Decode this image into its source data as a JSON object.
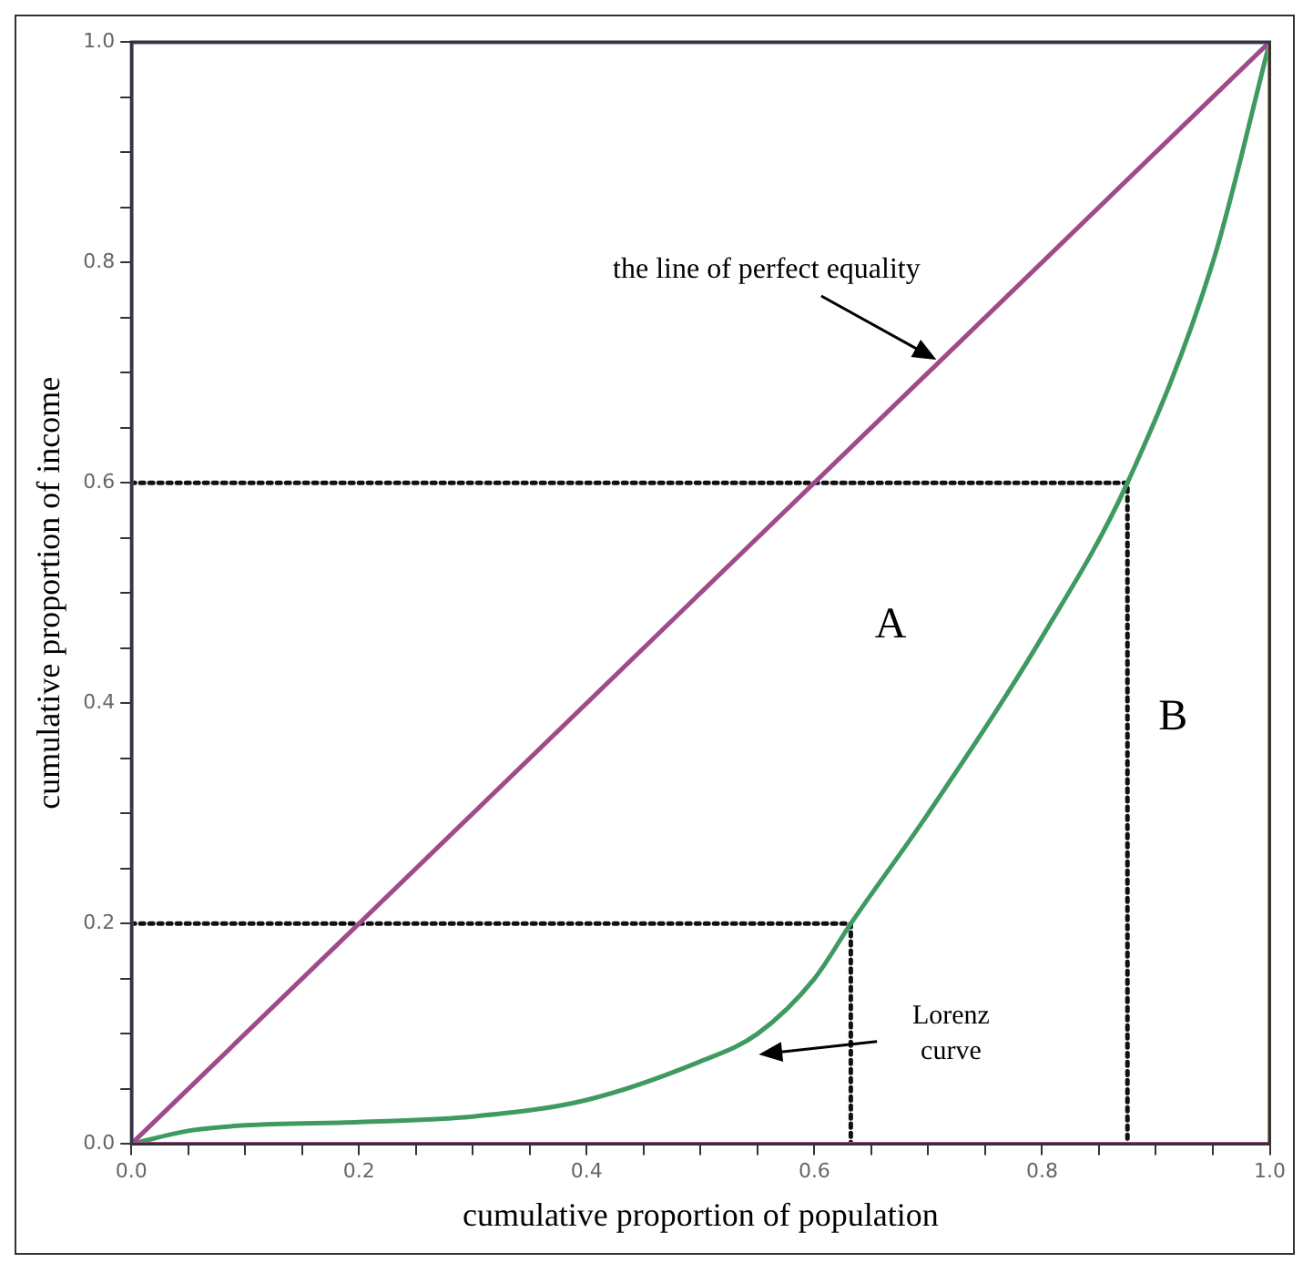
{
  "chart_data": {
    "type": "line",
    "xlabel": "cumulative proportion of population",
    "ylabel": "cumulative proportion of income",
    "xlim": [
      0,
      1
    ],
    "ylim": [
      0,
      1
    ],
    "xticks": [
      {
        "value": 0,
        "label": "0.0"
      },
      {
        "value": 0.05,
        "label": null
      },
      {
        "value": 0.1,
        "label": null
      },
      {
        "value": 0.15,
        "label": null
      },
      0.2,
      {
        "value": 0.25,
        "label": null
      },
      {
        "value": 0.3,
        "label": null
      },
      {
        "value": 0.35,
        "label": null
      },
      0.4,
      {
        "value": 0.45,
        "label": null
      },
      {
        "value": 0.5,
        "label": null
      },
      {
        "value": 0.55,
        "label": null
      },
      0.6,
      {
        "value": 0.65,
        "label": null
      },
      {
        "value": 0.7,
        "label": null
      },
      {
        "value": 0.75,
        "label": null
      },
      0.8,
      {
        "value": 0.85,
        "label": null
      },
      {
        "value": 0.9,
        "label": null
      },
      {
        "value": 0.95,
        "label": null
      },
      {
        "value": 1,
        "label": "1.0"
      }
    ],
    "yticks": [
      {
        "value": 0,
        "label": "0.0"
      },
      {
        "value": 0.05,
        "label": null
      },
      {
        "value": 0.1,
        "label": null
      },
      {
        "value": 0.15,
        "label": null
      },
      0.2,
      {
        "value": 0.25,
        "label": null
      },
      {
        "value": 0.3,
        "label": null
      },
      {
        "value": 0.35,
        "label": null
      },
      0.4,
      {
        "value": 0.45,
        "label": null
      },
      {
        "value": 0.5,
        "label": null
      },
      {
        "value": 0.55,
        "label": null
      },
      0.6,
      {
        "value": 0.65,
        "label": null
      },
      {
        "value": 0.7,
        "label": null
      },
      {
        "value": 0.75,
        "label": null
      },
      0.8,
      {
        "value": 0.85,
        "label": null
      },
      {
        "value": 0.9,
        "label": null
      },
      {
        "value": 0.95,
        "label": null
      },
      {
        "value": 1,
        "label": "1.0"
      }
    ],
    "grid": false,
    "legend": false,
    "marker": "none",
    "line_style": "solid",
    "series": [
      {
        "color": "#4b4ba3",
        "x": [
          0,
          0,
          1
        ],
        "values": [
          0,
          1,
          1
        ]
      },
      {
        "color": "#a04a8c",
        "x": [
          0,
          1
        ],
        "values": [
          0,
          0
        ]
      },
      {
        "color": "#b08a55",
        "x": [
          1,
          1
        ],
        "values": [
          0,
          1
        ]
      },
      {
        "color": "#a04a8c",
        "x": [
          0,
          1
        ],
        "values": [
          0,
          1
        ]
      },
      {
        "color": "#3f9a62",
        "x": [
          0,
          0.05,
          0.1,
          0.2,
          0.3,
          0.4,
          0.5,
          0.55,
          0.6,
          0.632,
          0.7,
          0.8,
          0.875,
          0.95,
          1
        ],
        "values": [
          0,
          0.012,
          0.017,
          0.02,
          0.025,
          0.04,
          0.075,
          0.1,
          0.15,
          0.2,
          0.3,
          0.46,
          0.6,
          0.8,
          1
        ]
      },
      {
        "color": "#111111",
        "line_style": "dotted",
        "x": [
          0,
          0.875,
          0.875
        ],
        "values": [
          0.6,
          0.6,
          0
        ]
      },
      {
        "color": "#111111",
        "line_style": "dotted",
        "x": [
          0,
          0.632,
          0.632
        ],
        "values": [
          0.2,
          0.2,
          0
        ]
      }
    ],
    "annotations": [
      {
        "text": "the line of perfect equality",
        "x": 0.71,
        "y": 0.71
      },
      "Lorenz curve",
      "A",
      "B"
    ]
  }
}
